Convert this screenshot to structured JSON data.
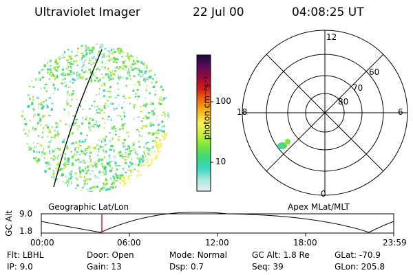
{
  "header": {
    "instrument": "Ultraviolet Imager",
    "date": "22 Jul 00",
    "time": "04:08:25 UT"
  },
  "colorbar": {
    "units_label": "photon cm⁻²s⁻¹",
    "tick_labels": [
      "100",
      "10"
    ],
    "stops": [
      "#1a0a3a",
      "#5a0a5a",
      "#9a0a3a",
      "#d0201a",
      "#f07010",
      "#f8b818",
      "#f8f060",
      "#c8f040",
      "#78e838",
      "#40d878",
      "#38d8c0",
      "#a8e8e0",
      "#e8f0f0"
    ]
  },
  "polar_plot": {
    "mlt_labels": [
      "12",
      "18",
      "6",
      "0"
    ],
    "mlat_labels": [
      "60",
      "70",
      "80"
    ]
  },
  "labels": {
    "left_panel": "Geographic Lat/Lon",
    "right_panel": "Apex MLat/MLT"
  },
  "altitude_plot": {
    "ylabel": "GC Alt",
    "y_ticks": [
      "9.0",
      "1.8"
    ],
    "x_ticks": [
      "00:00",
      "06:00",
      "12:00",
      "18:00",
      "23:59"
    ],
    "marker_time": "04:08"
  },
  "info": [
    {
      "label": "Flt:",
      "value": "LBHL"
    },
    {
      "label": "Door:",
      "value": "Open"
    },
    {
      "label": "Mode:",
      "value": "Normal"
    },
    {
      "label": "GC Alt:",
      "value": "1.8 Re"
    },
    {
      "label": "GLat:",
      "value": "-70.9"
    },
    {
      "label": "IP:",
      "value": "9.0"
    },
    {
      "label": "Gain:",
      "value": "13"
    },
    {
      "label": "Dsp:",
      "value": "0.7"
    },
    {
      "label": "Seq:",
      "value": "39"
    },
    {
      "label": "GLon:",
      "value": "205.8"
    }
  ]
}
